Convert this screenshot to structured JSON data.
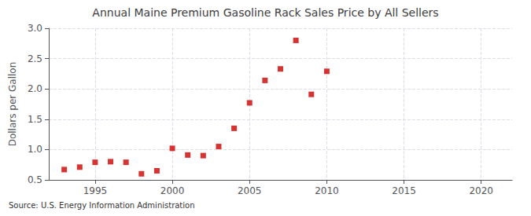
{
  "chart_data": {
    "type": "scatter",
    "title": "Annual Maine Premium Gasoline Rack Sales Price by All Sellers",
    "ylabel": "Dollars per Gallon",
    "source": "Source: U.S. Energy Information Administration",
    "x": [
      1993,
      1994,
      1995,
      1996,
      1997,
      1998,
      1999,
      2000,
      2001,
      2002,
      2003,
      2004,
      2005,
      2006,
      2007,
      2008,
      2009,
      2010
    ],
    "values": [
      0.67,
      0.71,
      0.79,
      0.8,
      0.79,
      0.6,
      0.65,
      1.02,
      0.91,
      0.9,
      1.05,
      1.35,
      1.77,
      2.14,
      2.33,
      2.8,
      1.91,
      2.29
    ],
    "color": "#cc0000",
    "marker": "square",
    "xlim": [
      1992,
      2022
    ],
    "ylim": [
      0.5,
      3.0
    ],
    "xticks": [
      1995,
      2000,
      2005,
      2010,
      2015,
      2020
    ],
    "yticks": [
      0.5,
      {
        "value": 1.0,
        "label": "1.0"
      },
      1.5,
      {
        "value": 2.0,
        "label": "2.0"
      },
      2.5,
      {
        "value": 3.0,
        "label": "3.0"
      }
    ],
    "grid": true
  }
}
